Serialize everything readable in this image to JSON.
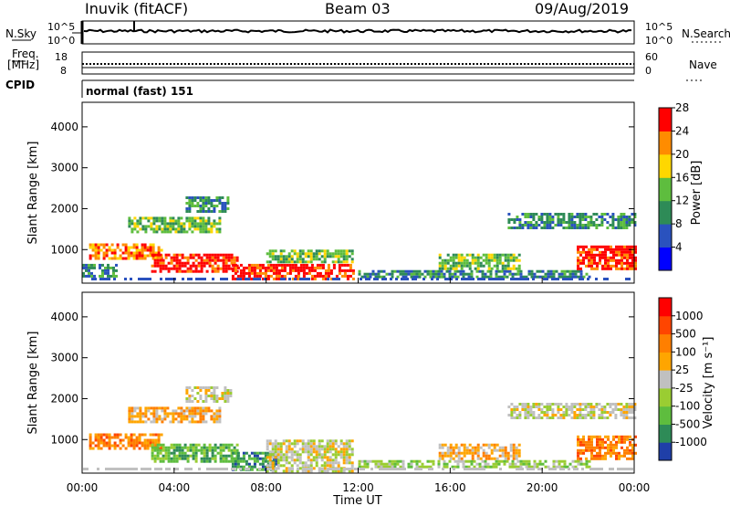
{
  "header": {
    "station": "Inuvik (fitACF)",
    "beam": "Beam 03",
    "date": "09/Aug/2019"
  },
  "top_panels": {
    "nsky_label": "N.Sky",
    "nsky_ticks": [
      "10^5",
      "10^0"
    ],
    "nsearch_label": "N.Search",
    "nsearch_ticks": [
      "10^5",
      "10^0"
    ],
    "freq_label_1": "Freq.",
    "freq_label_2": "[MHz]",
    "freq_ticks": [
      "18",
      "8"
    ],
    "nave_label": "Nave",
    "nave_ticks": [
      "60",
      "0"
    ],
    "cpid_label": "CPID",
    "cpid_text": "normal (fast) 151"
  },
  "chart_data": [
    {
      "type": "heatmap",
      "name": "power-panel",
      "ylabel": "Slant Range [km]",
      "yticks": [
        "1000",
        "2000",
        "3000",
        "4000"
      ],
      "ylim": [
        180,
        4600
      ],
      "xlim": [
        0,
        24
      ],
      "colorbar_label": "Power [dB]",
      "colorbar_ticks": [
        "4",
        "8",
        "12",
        "16",
        "20",
        "24",
        "28"
      ],
      "colorbar_colors": [
        "#0000ff",
        "#2a52be",
        "#2e8b57",
        "#5ebd3e",
        "#ffd700",
        "#ff8c00",
        "#ff0000"
      ],
      "bands": [
        {
          "x": [
            0.0,
            1.5
          ],
          "r": [
            350,
            650
          ],
          "level": 2
        },
        {
          "x": [
            0.3,
            3.5
          ],
          "r": [
            800,
            1150
          ],
          "level": 5
        },
        {
          "x": [
            3.0,
            6.8
          ],
          "r": [
            450,
            900
          ],
          "level": 6
        },
        {
          "x": [
            2.0,
            6.0
          ],
          "r": [
            1400,
            1800
          ],
          "level": 3
        },
        {
          "x": [
            4.5,
            6.3
          ],
          "r": [
            1950,
            2300
          ],
          "level": 2
        },
        {
          "x": [
            6.5,
            11.8
          ],
          "r": [
            250,
            650
          ],
          "level": 6
        },
        {
          "x": [
            8.0,
            11.8
          ],
          "r": [
            700,
            1000
          ],
          "level": 3
        },
        {
          "x": [
            12.0,
            22.0
          ],
          "r": [
            300,
            500
          ],
          "level": 2
        },
        {
          "x": [
            15.5,
            19.0
          ],
          "r": [
            500,
            900
          ],
          "level": 3
        },
        {
          "x": [
            21.5,
            24.0
          ],
          "r": [
            500,
            1100
          ],
          "level": 6
        },
        {
          "x": [
            18.5,
            24.0
          ],
          "r": [
            1500,
            1900
          ],
          "level": 2
        }
      ]
    },
    {
      "type": "heatmap",
      "name": "velocity-panel",
      "ylabel": "Slant Range [km]",
      "yticks": [
        "1000",
        "2000",
        "3000",
        "4000"
      ],
      "ylim": [
        180,
        4600
      ],
      "xlim": [
        0,
        24
      ],
      "xlabel": "Time UT",
      "xticks": [
        "00:00",
        "04:00",
        "08:00",
        "12:00",
        "16:00",
        "20:00",
        "00:00"
      ],
      "colorbar_label": "Velocity [m s⁻¹]",
      "colorbar_ticks": [
        "1000",
        "500",
        "100",
        "25",
        "-25",
        "-100",
        "-500",
        "-1000"
      ],
      "colorbar_colors": [
        "#1f3fa8",
        "#2e8b57",
        "#5ebd3e",
        "#9acd32",
        "#c0c0c0",
        "#ffa500",
        "#ff7f00",
        "#ff4500",
        "#ff0000"
      ],
      "bands": [
        {
          "x": [
            0.3,
            3.5
          ],
          "r": [
            800,
            1150
          ],
          "level": 6
        },
        {
          "x": [
            3.0,
            6.8
          ],
          "r": [
            450,
            900
          ],
          "level": 2
        },
        {
          "x": [
            2.0,
            6.0
          ],
          "r": [
            1400,
            1800
          ],
          "level": 5
        },
        {
          "x": [
            4.5,
            6.5
          ],
          "r": [
            1900,
            2300
          ],
          "level": 4
        },
        {
          "x": [
            6.5,
            8.5
          ],
          "r": [
            250,
            700
          ],
          "level": 1
        },
        {
          "x": [
            8.0,
            11.8
          ],
          "r": [
            250,
            1000
          ],
          "level": 4
        },
        {
          "x": [
            12.0,
            22.0
          ],
          "r": [
            300,
            500
          ],
          "level": 3
        },
        {
          "x": [
            15.5,
            19.0
          ],
          "r": [
            500,
            900
          ],
          "level": 5
        },
        {
          "x": [
            21.5,
            24.0
          ],
          "r": [
            500,
            1100
          ],
          "level": 6
        },
        {
          "x": [
            18.5,
            24.0
          ],
          "r": [
            1500,
            1900
          ],
          "level": 4
        }
      ]
    }
  ]
}
